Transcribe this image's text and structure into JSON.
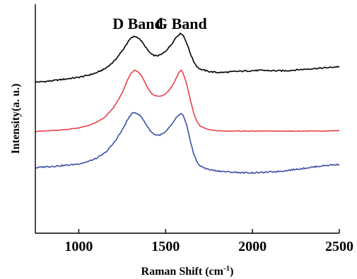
{
  "chart_data": {
    "type": "line",
    "title": "",
    "xlabel": "Raman Shift (cm",
    "xlabel_superscript": "-1",
    "xlabel_suffix": ")",
    "ylabel": "Intensity(a. u.)",
    "xlim": [
      750,
      2500
    ],
    "ylim": [
      0,
      1
    ],
    "x_ticks": [
      1000,
      1500,
      2000,
      2500
    ],
    "x_tick_labels": [
      "1000",
      "1500",
      "2000",
      "2500"
    ],
    "y_ticks_shown": false,
    "grid": false,
    "legend": "none",
    "annotations": [
      {
        "text": "D Band",
        "x": 1340
      },
      {
        "text": "G Band",
        "x": 1590
      }
    ],
    "series": [
      {
        "color": "#000000",
        "x": [
          750,
          800,
          850,
          900,
          950,
          1000,
          1050,
          1100,
          1150,
          1200,
          1250,
          1280,
          1300,
          1320,
          1340,
          1360,
          1380,
          1400,
          1420,
          1440,
          1460,
          1480,
          1500,
          1520,
          1540,
          1560,
          1580,
          1590,
          1600,
          1620,
          1640,
          1660,
          1680,
          1700,
          1750,
          1800,
          1850,
          1900,
          1950,
          2000,
          2050,
          2100,
          2150,
          2200,
          2250,
          2300,
          2350,
          2400,
          2450,
          2500
        ],
        "values": [
          0.66,
          0.662,
          0.666,
          0.671,
          0.676,
          0.681,
          0.689,
          0.7,
          0.718,
          0.748,
          0.796,
          0.832,
          0.851,
          0.86,
          0.855,
          0.84,
          0.818,
          0.796,
          0.78,
          0.775,
          0.776,
          0.782,
          0.796,
          0.812,
          0.832,
          0.856,
          0.87,
          0.872,
          0.866,
          0.834,
          0.79,
          0.752,
          0.728,
          0.716,
          0.706,
          0.702,
          0.703,
          0.706,
          0.708,
          0.71,
          0.711,
          0.71,
          0.709,
          0.71,
          0.713,
          0.716,
          0.719,
          0.721,
          0.724,
          0.728
        ]
      },
      {
        "color": "#e8404a",
        "x": [
          750,
          800,
          850,
          900,
          950,
          1000,
          1050,
          1100,
          1150,
          1200,
          1250,
          1280,
          1300,
          1320,
          1340,
          1360,
          1380,
          1400,
          1420,
          1440,
          1460,
          1480,
          1500,
          1520,
          1540,
          1560,
          1580,
          1590,
          1600,
          1620,
          1640,
          1660,
          1680,
          1700,
          1750,
          1800,
          1850,
          1900,
          1950,
          2000,
          2050,
          2100,
          2150,
          2200,
          2250,
          2300,
          2350,
          2400,
          2450,
          2500
        ],
        "values": [
          0.445,
          0.446,
          0.448,
          0.451,
          0.455,
          0.46,
          0.469,
          0.483,
          0.506,
          0.548,
          0.612,
          0.668,
          0.698,
          0.712,
          0.706,
          0.688,
          0.66,
          0.63,
          0.61,
          0.6,
          0.598,
          0.6,
          0.61,
          0.625,
          0.646,
          0.676,
          0.706,
          0.712,
          0.7,
          0.655,
          0.59,
          0.528,
          0.487,
          0.467,
          0.452,
          0.447,
          0.446,
          0.446,
          0.446,
          0.446,
          0.446,
          0.446,
          0.446,
          0.446,
          0.446,
          0.446,
          0.446,
          0.446,
          0.447,
          0.448
        ]
      },
      {
        "color": "#3a50a6",
        "x": [
          750,
          800,
          850,
          900,
          950,
          1000,
          1050,
          1100,
          1150,
          1200,
          1250,
          1280,
          1300,
          1320,
          1340,
          1360,
          1380,
          1400,
          1420,
          1440,
          1460,
          1480,
          1500,
          1520,
          1540,
          1560,
          1580,
          1590,
          1600,
          1620,
          1640,
          1660,
          1680,
          1700,
          1750,
          1800,
          1850,
          1900,
          1950,
          2000,
          2050,
          2100,
          2150,
          2200,
          2250,
          2300,
          2350,
          2400,
          2450,
          2500
        ],
        "values": [
          0.285,
          0.29,
          0.292,
          0.295,
          0.298,
          0.303,
          0.312,
          0.326,
          0.35,
          0.392,
          0.45,
          0.494,
          0.518,
          0.528,
          0.522,
          0.508,
          0.485,
          0.46,
          0.44,
          0.43,
          0.428,
          0.432,
          0.442,
          0.46,
          0.48,
          0.502,
          0.518,
          0.521,
          0.515,
          0.474,
          0.412,
          0.35,
          0.312,
          0.292,
          0.278,
          0.272,
          0.268,
          0.266,
          0.264,
          0.264,
          0.265,
          0.267,
          0.27,
          0.274,
          0.279,
          0.284,
          0.289,
          0.294,
          0.298,
          0.3
        ]
      }
    ]
  }
}
